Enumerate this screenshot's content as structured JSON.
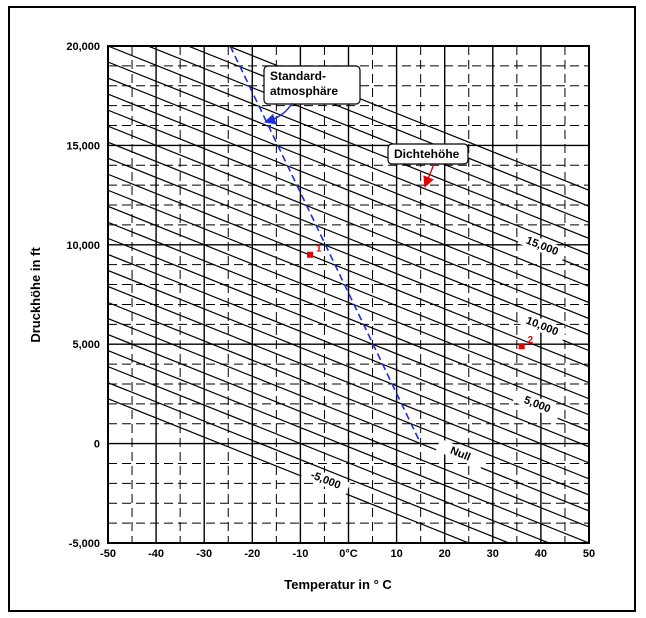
{
  "chart_data": {
    "type": "line",
    "xlabel": "Temperatur in ° C",
    "ylabel": "Druckhöhe in ft",
    "xlim": [
      -50,
      50
    ],
    "ylim": [
      -5000,
      20000
    ],
    "x_ticks": [
      "-50",
      "-40",
      "-30",
      "-20",
      "-10",
      "0°C",
      "10",
      "20",
      "30",
      "40",
      "50"
    ],
    "y_ticks": [
      "20,000",
      "15,000",
      "10,000",
      "5,000",
      "0",
      "-5,000"
    ],
    "grid": true,
    "density_altitude_lines": {
      "slope_ft_per_degC": -120,
      "reference_temp_degC": 15,
      "step_ft": 1000,
      "from_ft": -5000,
      "to_ft": 20000,
      "labeled": [
        {
          "value": 15000,
          "text": "15,000"
        },
        {
          "value": 10000,
          "text": "10,000"
        },
        {
          "value": 5000,
          "text": "5,000"
        },
        {
          "value": 0,
          "text": "Null"
        },
        {
          "value": -5000,
          "text": "-5,000"
        }
      ]
    },
    "standard_atmosphere": {
      "name": "Standard-atmosphäre",
      "color": "#1a2ee0",
      "points": [
        [
          -24.6,
          20000
        ],
        [
          15,
          0
        ]
      ]
    },
    "points": [
      {
        "label": "1",
        "x": -8,
        "y": 9500,
        "color": "#e00000"
      },
      {
        "label": "2",
        "x": 36,
        "y": 4900,
        "color": "#e00000"
      }
    ],
    "callouts": [
      {
        "id": "standard",
        "lines": [
          "Standard-",
          "atmosphäre"
        ],
        "pointer_to": [
          -17,
          16200
        ]
      },
      {
        "id": "density",
        "lines": [
          "Dichtehöhe"
        ],
        "pointer_to": [
          16,
          13000
        ]
      }
    ]
  }
}
